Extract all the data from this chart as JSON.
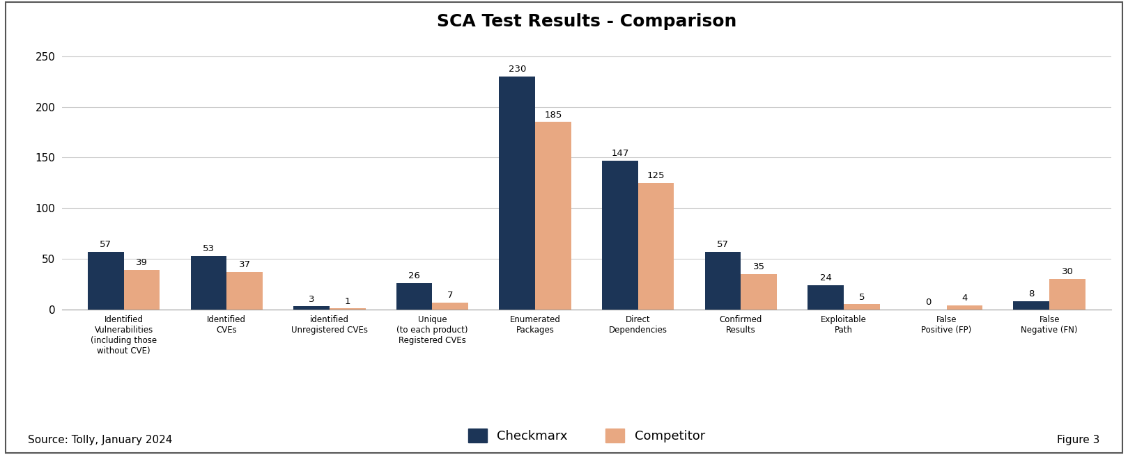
{
  "title": "SCA Test Results - Comparison",
  "categories": [
    "Identified\nVulnerabilities\n(including those\nwithout CVE)",
    "Identified\nCVEs",
    "identified\nUnregistered CVEs",
    "Unique\n(to each product)\nRegistered CVEs",
    "Enumerated\nPackages",
    "Direct\nDependencies",
    "Confirmed\nResults",
    "Exploitable\nPath",
    "False\nPositive (FP)",
    "False\nNegative (FN)"
  ],
  "checkmarx_values": [
    57,
    53,
    3,
    26,
    230,
    147,
    57,
    24,
    0,
    8
  ],
  "competitor_values": [
    39,
    37,
    1,
    7,
    185,
    125,
    35,
    5,
    4,
    30
  ],
  "checkmarx_color": "#1C3557",
  "competitor_color": "#E8A882",
  "bar_width": 0.35,
  "ylim": [
    0,
    265
  ],
  "yticks": [
    0,
    50,
    100,
    150,
    200,
    250
  ],
  "legend_labels": [
    "Checkmarx",
    "Competitor"
  ],
  "source_text": "Source: Tolly, January 2024",
  "figure_text": "Figure 3",
  "background_color": "#FFFFFF",
  "border_color": "#555555",
  "grid_color": "#CCCCCC",
  "title_fontsize": 18,
  "label_fontsize": 8.5,
  "value_fontsize": 9.5,
  "legend_fontsize": 13,
  "source_fontsize": 11,
  "figure_fontsize": 11
}
